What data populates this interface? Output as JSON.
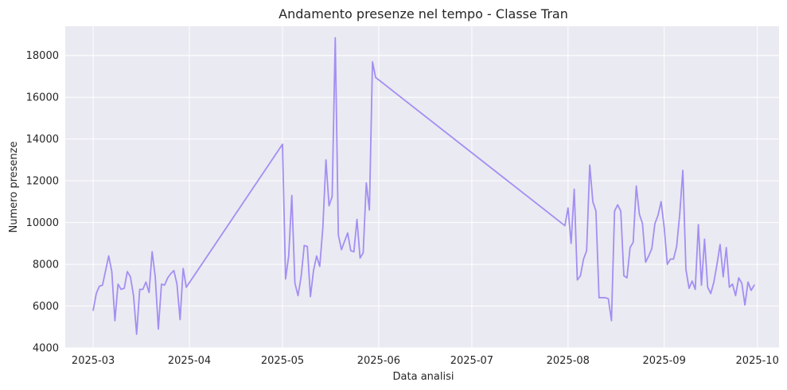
{
  "chart_data": {
    "type": "line",
    "title": "Andamento presenze nel tempo - Classe Tran",
    "xlabel": "Data analisi",
    "ylabel": "Numero presenze",
    "ylim": [
      4000,
      19400
    ],
    "xlim": [
      "2025-02-20",
      "2025-10-08"
    ],
    "grid": true,
    "background": "#eaeaf2",
    "line_color": "#a48ef2",
    "x_ticks": [
      "2025-03",
      "2025-04",
      "2025-05",
      "2025-06",
      "2025-07",
      "2025-08",
      "2025-09",
      "2025-10"
    ],
    "y_ticks": [
      4000,
      6000,
      8000,
      10000,
      12000,
      14000,
      16000,
      18000
    ],
    "series": [
      {
        "x": [
          "2025-03-01",
          "2025-03-02",
          "2025-03-03",
          "2025-03-04",
          "2025-03-05",
          "2025-03-06",
          "2025-03-07",
          "2025-03-08",
          "2025-03-09",
          "2025-03-10",
          "2025-03-11",
          "2025-03-12",
          "2025-03-13",
          "2025-03-14",
          "2025-03-15",
          "2025-03-16",
          "2025-03-17",
          "2025-03-18",
          "2025-03-19",
          "2025-03-20",
          "2025-03-21",
          "2025-03-22",
          "2025-03-23",
          "2025-03-24",
          "2025-03-25",
          "2025-03-26",
          "2025-03-27",
          "2025-03-28",
          "2025-03-29",
          "2025-03-30",
          "2025-03-31",
          "2025-05-01",
          "2025-05-02",
          "2025-05-03",
          "2025-05-04",
          "2025-05-05",
          "2025-05-06",
          "2025-05-07",
          "2025-05-08",
          "2025-05-09",
          "2025-05-10",
          "2025-05-11",
          "2025-05-12",
          "2025-05-13",
          "2025-05-14",
          "2025-05-15",
          "2025-05-16",
          "2025-05-17",
          "2025-05-18",
          "2025-05-19",
          "2025-05-20",
          "2025-05-21",
          "2025-05-22",
          "2025-05-23",
          "2025-05-24",
          "2025-05-25",
          "2025-05-26",
          "2025-05-27",
          "2025-05-28",
          "2025-05-29",
          "2025-05-30",
          "2025-05-31",
          "2025-07-31",
          "2025-08-01",
          "2025-08-02",
          "2025-08-03",
          "2025-08-04",
          "2025-08-05",
          "2025-08-06",
          "2025-08-07",
          "2025-08-08",
          "2025-08-09",
          "2025-08-10",
          "2025-08-11",
          "2025-08-12",
          "2025-08-13",
          "2025-08-14",
          "2025-08-15",
          "2025-08-16",
          "2025-08-17",
          "2025-08-18",
          "2025-08-19",
          "2025-08-20",
          "2025-08-21",
          "2025-08-22",
          "2025-08-23",
          "2025-08-24",
          "2025-08-25",
          "2025-08-26",
          "2025-08-27",
          "2025-08-28",
          "2025-08-29",
          "2025-08-30",
          "2025-08-31",
          "2025-09-01",
          "2025-09-02",
          "2025-09-03",
          "2025-09-04",
          "2025-09-05",
          "2025-09-06",
          "2025-09-07",
          "2025-09-08",
          "2025-09-09",
          "2025-09-10",
          "2025-09-11",
          "2025-09-12",
          "2025-09-13",
          "2025-09-14",
          "2025-09-15",
          "2025-09-16",
          "2025-09-17",
          "2025-09-18",
          "2025-09-19",
          "2025-09-20",
          "2025-09-21",
          "2025-09-22",
          "2025-09-23",
          "2025-09-24",
          "2025-09-25",
          "2025-09-26",
          "2025-09-27",
          "2025-09-28",
          "2025-09-29",
          "2025-09-30"
        ],
        "y": [
          5800,
          6600,
          6950,
          7000,
          7700,
          8400,
          7650,
          5300,
          7050,
          6800,
          6850,
          7650,
          7400,
          6500,
          4650,
          6800,
          6800,
          7150,
          6650,
          8600,
          7400,
          4900,
          7050,
          7000,
          7350,
          7550,
          7700,
          7050,
          5350,
          7800,
          6900,
          13750,
          7300,
          8400,
          11300,
          7100,
          6500,
          7400,
          8900,
          8850,
          6450,
          7700,
          8400,
          7900,
          9750,
          13000,
          10800,
          11250,
          18850,
          9400,
          8700,
          9100,
          9500,
          8650,
          8600,
          10150,
          8300,
          8550,
          11900,
          10600,
          17700,
          16950,
          9850,
          10700,
          9000,
          11600,
          7250,
          7450,
          8250,
          8650,
          12750,
          11000,
          10550,
          6400,
          6400,
          6400,
          6350,
          5300,
          10550,
          10850,
          10550,
          7450,
          7350,
          8800,
          9050,
          11750,
          10400,
          9950,
          8100,
          8400,
          8750,
          9950,
          10350,
          11000,
          9750,
          8000,
          8250,
          8250,
          8850,
          10400,
          12500,
          7750,
          6850,
          7200,
          6800,
          9900,
          7000,
          9200,
          6900,
          6600,
          7150,
          8000,
          8950,
          7400,
          8800,
          6900,
          7050,
          6500,
          7350,
          7100,
          6050,
          7150,
          6750,
          7000
        ]
      }
    ]
  }
}
